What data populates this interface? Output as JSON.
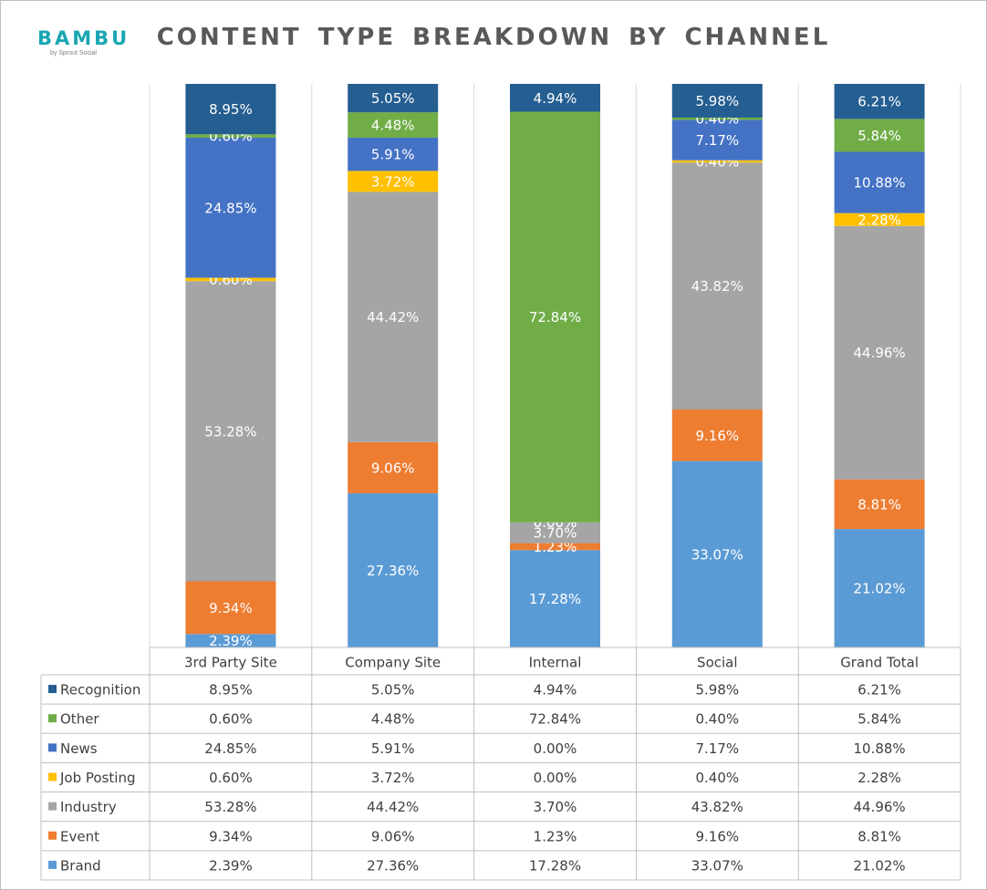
{
  "header": {
    "logo_text": "BAMBU",
    "logo_subtext": "by Sprout Social",
    "title": "CONTENT TYPE BREAKDOWN BY CHANNEL"
  },
  "colors": {
    "Recognition": "#255e91",
    "Other": "#70ad47",
    "News": "#4472c4",
    "Job Posting": "#ffc000",
    "Industry": "#a5a5a5",
    "Event": "#ed7d31",
    "Brand": "#5b9bd5"
  },
  "chart_data": {
    "type": "bar",
    "stacked": true,
    "title": "CONTENT TYPE BREAKDOWN BY CHANNEL",
    "categories": [
      "3rd Party Site",
      "Company Site",
      "Internal",
      "Social",
      "Grand Total"
    ],
    "series": [
      {
        "name": "Recognition",
        "values": [
          8.95,
          5.05,
          4.94,
          5.98,
          6.21
        ],
        "labels": [
          "8.95%",
          "5.05%",
          "4.94%",
          "5.98%",
          "6.21%"
        ]
      },
      {
        "name": "Other",
        "values": [
          0.6,
          4.48,
          72.84,
          0.4,
          5.84
        ],
        "labels": [
          "0.60%",
          "4.48%",
          "72.84%",
          "0.40%",
          "5.84%"
        ]
      },
      {
        "name": "News",
        "values": [
          24.85,
          5.91,
          0.0,
          7.17,
          10.88
        ],
        "labels": [
          "24.85%",
          "5.91%",
          "0.00%",
          "7.17%",
          "10.88%"
        ]
      },
      {
        "name": "Job Posting",
        "values": [
          0.6,
          3.72,
          0.0,
          0.4,
          2.28
        ],
        "labels": [
          "0.60%",
          "3.72%",
          "0.00%",
          "0.40%",
          "2.28%"
        ]
      },
      {
        "name": "Industry",
        "values": [
          53.28,
          44.42,
          3.7,
          43.82,
          44.96
        ],
        "labels": [
          "53.28%",
          "44.42%",
          "3.70%",
          "43.82%",
          "44.96%"
        ]
      },
      {
        "name": "Event",
        "values": [
          9.34,
          9.06,
          1.23,
          9.16,
          8.81
        ],
        "labels": [
          "9.34%",
          "9.06%",
          "1.23%",
          "9.16%",
          "8.81%"
        ]
      },
      {
        "name": "Brand",
        "values": [
          2.39,
          27.36,
          17.28,
          33.07,
          21.02
        ],
        "labels": [
          "2.39%",
          "27.36%",
          "17.28%",
          "33.07%",
          "21.02%"
        ]
      }
    ],
    "ylim": [
      0,
      100
    ],
    "grid": false,
    "legend": "data table below chart"
  }
}
